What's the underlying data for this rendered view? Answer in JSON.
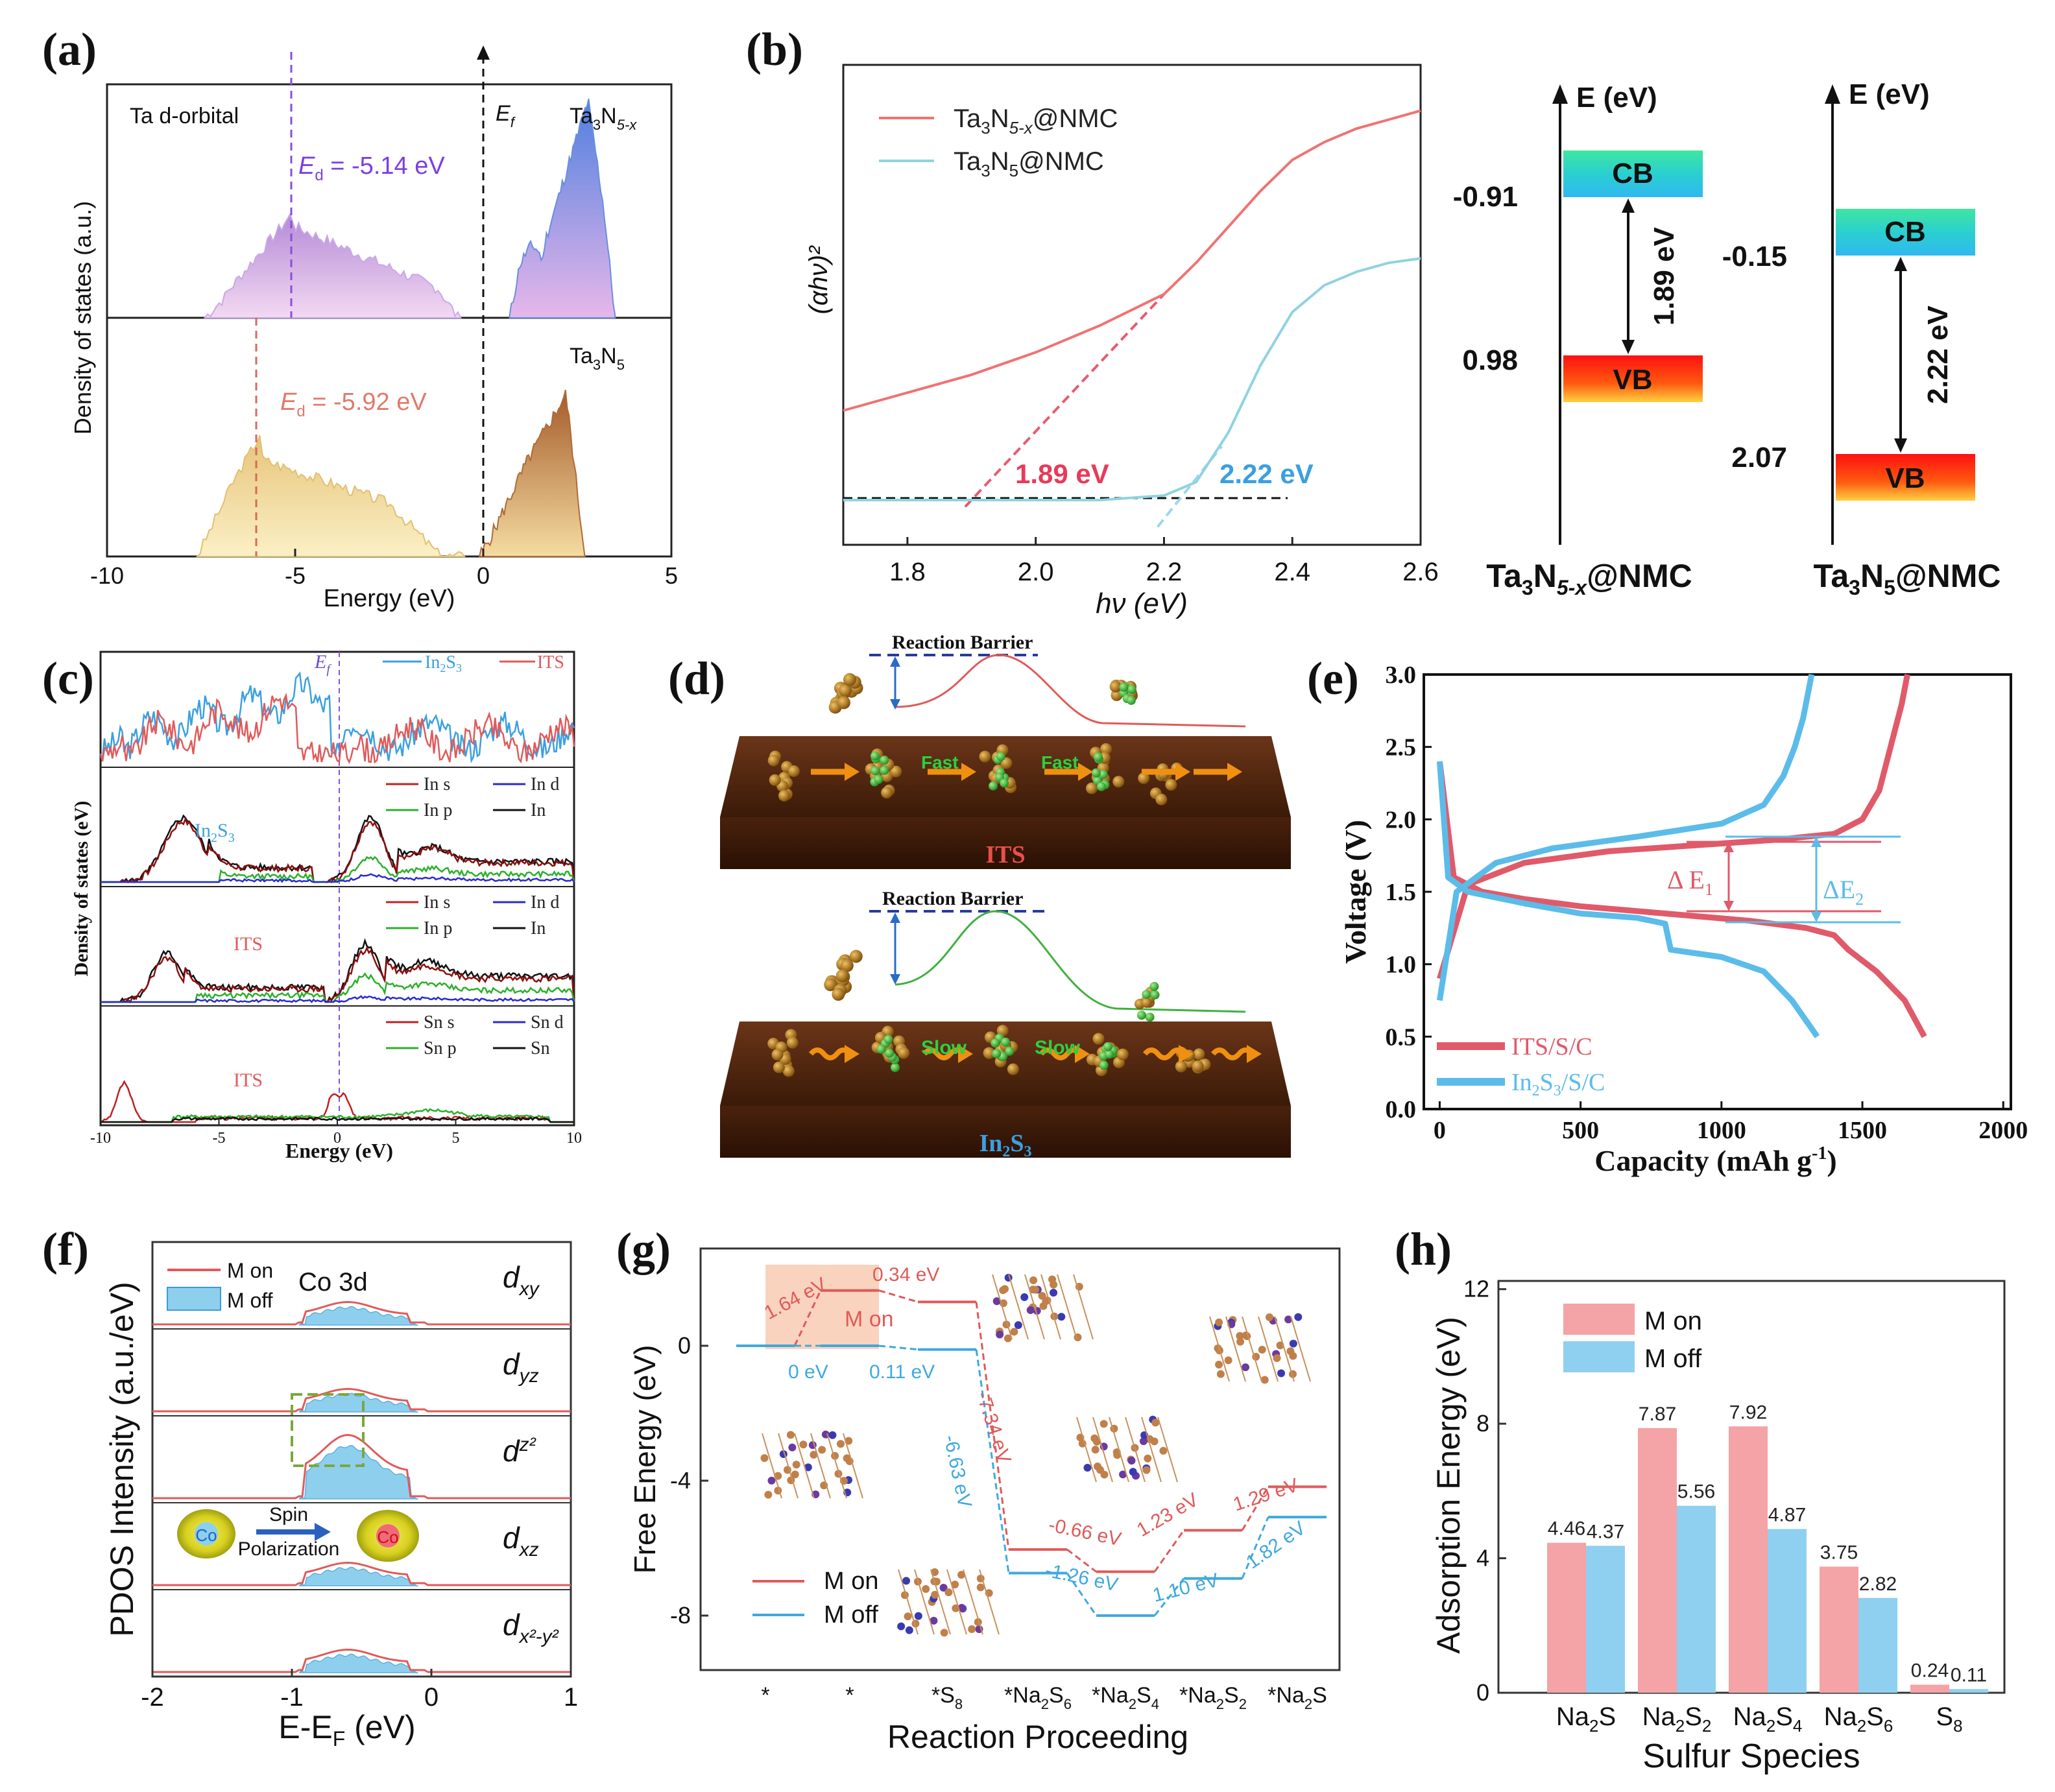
{
  "figure": {
    "panel_labels": [
      "(a)",
      "(b)",
      "(c)",
      "(d)",
      "(e)",
      "(f)",
      "(g)",
      "(h)"
    ]
  },
  "panel_a": {
    "ylabel": "Density of states (a.u.)",
    "xlabel": "Energy (eV)",
    "xticks": [
      "-10",
      "-5",
      "0",
      "5"
    ],
    "orbital_label": "Ta d-orbital",
    "fermi_label": "E",
    "fermi_sub": "f",
    "top": {
      "species_main": "Ta",
      "species_sub1": "3",
      "species_mid": "N",
      "species_sub2": "5-x",
      "ed_prefix": "E",
      "ed_sub": "d",
      "ed_value": " = -5.14 eV",
      "ed_color": "#7b3fe4"
    },
    "bottom": {
      "species_main": "Ta",
      "species_sub1": "3",
      "species_mid": "N",
      "species_sub2": "5",
      "ed_prefix": "E",
      "ed_sub": "d",
      "ed_value": " = -5.92 eV",
      "ed_color": "#e07a6a"
    }
  },
  "panel_b": {
    "chart_data": {
      "type": "line",
      "title": "",
      "xlabel": "hν (eV)",
      "ylabel": "(αhν)²",
      "xlim": [
        1.7,
        2.6
      ],
      "xticks": [
        "1.8",
        "2.0",
        "2.2",
        "2.4",
        "2.6"
      ],
      "series": [
        {
          "name": "Ta3N5-x@NMC",
          "color": "#f07272",
          "x": [
            1.7,
            1.8,
            1.9,
            2.0,
            2.1,
            2.2,
            2.25,
            2.3,
            2.35,
            2.4,
            2.45,
            2.5,
            2.55,
            2.6
          ],
          "y": [
            0.3,
            0.34,
            0.38,
            0.43,
            0.49,
            0.56,
            0.63,
            0.71,
            0.79,
            0.86,
            0.9,
            0.93,
            0.95,
            0.97
          ]
        },
        {
          "name": "Ta3N5@NMC",
          "color": "#8fd3e0",
          "x": [
            1.7,
            1.9,
            2.1,
            2.2,
            2.25,
            2.3,
            2.35,
            2.4,
            2.45,
            2.5,
            2.55,
            2.6
          ],
          "y": [
            0.1,
            0.1,
            0.1,
            0.11,
            0.14,
            0.25,
            0.4,
            0.52,
            0.58,
            0.61,
            0.63,
            0.64
          ]
        }
      ],
      "annotations": [
        "1.89 eV",
        "2.22 eV"
      ]
    },
    "legend": [
      {
        "main": "Ta",
        "s1": "3",
        "mid": "N",
        "s2": "5-x",
        "tail": "@NMC",
        "color": "#f07272"
      },
      {
        "main": "Ta",
        "s1": "3",
        "mid": "N",
        "s2": "5",
        "tail": "@NMC",
        "color": "#8fd3e0"
      }
    ],
    "bandgap_1": "1.89 eV",
    "bandgap_2": "2.22 eV",
    "band_left": {
      "axis": "E (eV)",
      "cb_value": "-0.91",
      "vb_value": "0.98",
      "gap": "1.89 eV",
      "cb": "CB",
      "vb": "VB",
      "name_main": "Ta",
      "name_s1": "3",
      "name_mid": "N",
      "name_s2": "5-x",
      "name_tail": "@NMC"
    },
    "band_right": {
      "axis": "E (eV)",
      "cb_value": "-0.15",
      "vb_value": "2.07",
      "gap": "2.22 eV",
      "cb": "CB",
      "vb": "VB",
      "name_main": "Ta",
      "name_s1": "3",
      "name_mid": "N",
      "name_s2": "5",
      "name_tail": "@NMC"
    }
  },
  "panel_c": {
    "ylabel": "Density of states (eV)",
    "xlabel": "Energy (eV)",
    "xticks": [
      "-10",
      "-5",
      "0",
      "5",
      "10"
    ],
    "fermi": "E",
    "fermi_sub": "f",
    "legend_top": [
      "In2S3",
      "ITS"
    ],
    "in2s3_label": "In",
    "legend_in": [
      "In s",
      "In d",
      "In p",
      "In"
    ],
    "legend_sn": [
      "Sn s",
      "Sn d",
      "Sn p",
      "Sn"
    ],
    "its": "ITS"
  },
  "panel_d": {
    "barrier": "Reaction Barrier",
    "fast": "Fast",
    "slow": "Slow",
    "top_label": "ITS",
    "bottom_label": "In",
    "bottom_sub1": "2",
    "bottom_mid": "S",
    "bottom_sub2": "3"
  },
  "panel_e": {
    "chart_data": {
      "type": "line",
      "xlabel": "Capacity (mAh g-1)",
      "ylabel": "Voltage (V)",
      "xlim": [
        0,
        2000
      ],
      "ylim": [
        0,
        3.0
      ],
      "xticks": [
        "0",
        "500",
        "1000",
        "1500",
        "2000"
      ],
      "yticks": [
        "0.0",
        "0.5",
        "1.0",
        "1.5",
        "2.0",
        "2.5",
        "3.0"
      ],
      "series": [
        {
          "name": "ITS/S/C discharge",
          "color": "#e05a6a",
          "x": [
            0,
            50,
            150,
            300,
            500,
            800,
            1100,
            1300,
            1400,
            1450,
            1550,
            1650,
            1720
          ],
          "y": [
            2.4,
            1.6,
            1.5,
            1.45,
            1.4,
            1.35,
            1.3,
            1.25,
            1.2,
            1.1,
            0.95,
            0.75,
            0.5
          ]
        },
        {
          "name": "ITS/S/C charge",
          "color": "#e05a6a",
          "x": [
            0,
            100,
            300,
            600,
            900,
            1200,
            1400,
            1500,
            1560,
            1600,
            1640,
            1660
          ],
          "y": [
            0.9,
            1.55,
            1.7,
            1.78,
            1.82,
            1.86,
            1.9,
            2.0,
            2.2,
            2.5,
            2.8,
            3.0
          ]
        },
        {
          "name": "In2S3/S/C discharge",
          "color": "#5bbcea",
          "x": [
            0,
            30,
            100,
            300,
            500,
            700,
            800,
            820,
            1000,
            1150,
            1250,
            1340
          ],
          "y": [
            2.4,
            1.6,
            1.5,
            1.42,
            1.35,
            1.32,
            1.28,
            1.1,
            1.05,
            0.95,
            0.75,
            0.5
          ]
        },
        {
          "name": "In2S3/S/C charge",
          "color": "#5bbcea",
          "x": [
            0,
            60,
            200,
            400,
            700,
            1000,
            1150,
            1220,
            1260,
            1290,
            1310,
            1320
          ],
          "y": [
            0.75,
            1.5,
            1.7,
            1.8,
            1.88,
            1.97,
            2.1,
            2.3,
            2.5,
            2.7,
            2.9,
            3.0
          ]
        }
      ],
      "annotations": [
        "ΔE1",
        "ΔE2"
      ]
    },
    "legend": [
      {
        "text": "ITS/S/C",
        "color": "#e05a6a"
      },
      {
        "main": "In",
        "s1": "2",
        "mid": "S",
        "s2": "3",
        "tail": "/S/C",
        "color": "#5bbcea"
      }
    ],
    "de1_main": "Δ E",
    "de1_sub": "1",
    "de2_main": "ΔE",
    "de2_sub": "2",
    "xunit_main": "Capacity (mAh g",
    "xunit_sup": "-1",
    "xunit_tail": ")"
  },
  "panel_f": {
    "ylabel": "PDOS Intensity (a.u./eV)",
    "xlabel": "E-E",
    "xlabel_sub": "F",
    "xlabel_tail": " (eV)",
    "xticks": [
      "-2",
      "-1",
      "0",
      "1"
    ],
    "legend": [
      "M on",
      "M off"
    ],
    "title": "Co 3d",
    "orbitals": [
      {
        "main": "d",
        "sub": "xy"
      },
      {
        "main": "d",
        "sub": "yz"
      },
      {
        "main": "d",
        "sub": "z²"
      },
      {
        "main": "d",
        "sub": "xz"
      },
      {
        "main": "d",
        "sub": "x²-y²"
      }
    ],
    "spin": "Spin",
    "polarization": "Polarization",
    "co": "Co"
  },
  "panel_g": {
    "chart_data": {
      "type": "line",
      "xlabel": "Reaction Proceeding",
      "ylabel": "Free Energy (eV)",
      "categories": [
        "*",
        "*",
        "*S8",
        "*Na2S6",
        "*Na2S4",
        "*Na2S2",
        "*Na2S"
      ],
      "ylim": [
        -10,
        3
      ],
      "yticks": [
        "0",
        "-4",
        "-8"
      ],
      "series": [
        {
          "name": "M on",
          "color": "#e05a5a",
          "values": [
            0,
            1.64,
            1.3,
            -6.04,
            -6.7,
            -5.47,
            -4.18
          ]
        },
        {
          "name": "M off",
          "color": "#3fa9dc",
          "values": [
            0,
            0,
            -0.11,
            -6.74,
            -8.0,
            -6.9,
            -5.08
          ]
        }
      ],
      "annotations": [
        "1.64 eV",
        "0.34 eV",
        "0 eV",
        "0.11 eV",
        "-7.34 eV",
        "-6.63 eV",
        "-0.66 eV",
        "1.23 eV",
        "1.29 eV",
        "-1.26 eV",
        "1.10 eV",
        "1.82 eV"
      ]
    },
    "legend": [
      "M on",
      "M off"
    ],
    "m_on_box": "M on",
    "xcats": [
      {
        "main": "*",
        "rest": ""
      },
      {
        "main": "*",
        "rest": ""
      },
      {
        "main": "*S",
        "sub": "8"
      },
      {
        "main": "*Na",
        "sub": "2",
        "mid": "S",
        "sub2": "6"
      },
      {
        "main": "*Na",
        "sub": "2",
        "mid": "S",
        "sub2": "4"
      },
      {
        "main": "*Na",
        "sub": "2",
        "mid": "S",
        "sub2": "2"
      },
      {
        "main": "*Na",
        "sub": "2",
        "mid": "S",
        "sub2": ""
      }
    ],
    "labels": {
      "l164": "1.64 eV",
      "l034": "0.34 eV",
      "l0": "0 eV",
      "l011": "0.11 eV",
      "l734": "-7.34 eV",
      "l663": "-6.63 eV",
      "l066": "-0.66 eV",
      "l123": "1.23 eV",
      "l129": "1.29 eV",
      "l126": "-1.26 eV",
      "l110": "1.10 eV",
      "l182": "1.82 eV"
    }
  },
  "panel_h": {
    "chart_data": {
      "type": "bar",
      "title": "",
      "xlabel": "Sulfur Species",
      "ylabel": "Adsorption Energy (eV)",
      "categories": [
        "Na2S",
        "Na2S2",
        "Na2S4",
        "Na2S6",
        "S8"
      ],
      "ylim": [
        0,
        12
      ],
      "yticks": [
        "0",
        "4",
        "8",
        "12"
      ],
      "series": [
        {
          "name": "M on",
          "color": "#f4a3a6",
          "values": [
            4.46,
            7.87,
            7.92,
            3.75,
            0.24
          ]
        },
        {
          "name": "M off",
          "color": "#8fd0f0",
          "values": [
            4.37,
            5.56,
            4.87,
            2.82,
            0.11
          ]
        }
      ],
      "value_labels_on": [
        "4.46",
        "7.87",
        "7.92",
        "3.75",
        "0.24"
      ],
      "value_labels_off": [
        "4.37",
        "5.56",
        "4.87",
        "2.82",
        "0.11"
      ]
    },
    "legend": [
      "M on",
      "M off"
    ],
    "xcats": [
      {
        "main": "Na",
        "sub": "2",
        "mid": "S",
        "sub2": ""
      },
      {
        "main": "Na",
        "sub": "2",
        "mid": "S",
        "sub2": "2"
      },
      {
        "main": "Na",
        "sub": "2",
        "mid": "S",
        "sub2": "4"
      },
      {
        "main": "Na",
        "sub": "2",
        "mid": "S",
        "sub2": "6"
      },
      {
        "main": "S",
        "sub": "8",
        "mid": "",
        "sub2": ""
      }
    ]
  }
}
